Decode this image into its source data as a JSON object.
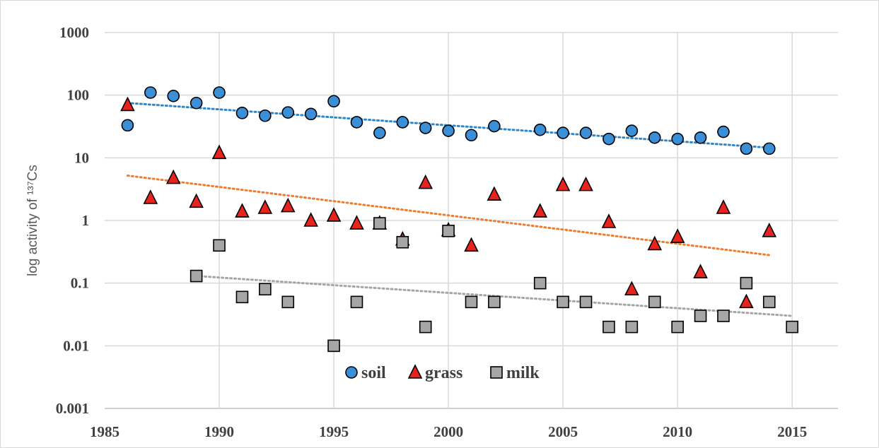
{
  "chart_data": {
    "type": "scatter",
    "y_label": "log activity of ¹³⁷Cs",
    "log_y": true,
    "grid": true,
    "xlim": [
      1985,
      2017
    ],
    "xticks": [
      1985,
      1990,
      1995,
      2000,
      2005,
      2010,
      2015
    ],
    "ylim": [
      0.001,
      1000
    ],
    "yticks": [
      0.001,
      0.01,
      0.1,
      1,
      10,
      100,
      1000
    ],
    "legend": "bottom",
    "series": [
      {
        "name": "soil",
        "marker": "circle",
        "color": "#3b8fd6",
        "trend_color": "#2f86c8",
        "x": [
          1986,
          1987,
          1988,
          1989,
          1990,
          1991,
          1992,
          1993,
          1994,
          1995,
          1996,
          1997,
          1998,
          1999,
          2000,
          2001,
          2002,
          2004,
          2005,
          2006,
          2007,
          2008,
          2009,
          2010,
          2011,
          2012,
          2013,
          2014
        ],
        "values": [
          33,
          110,
          97,
          75,
          110,
          52,
          47,
          53,
          50,
          80,
          37,
          25,
          37,
          30,
          27,
          23,
          32,
          28,
          25,
          25,
          20,
          27,
          21,
          20,
          21,
          26,
          14,
          14
        ],
        "trend": {
          "x": [
            1986,
            2014
          ],
          "values": [
            75,
            14.5
          ]
        }
      },
      {
        "name": "grass",
        "marker": "triangle",
        "color": "#e8231e",
        "trend_color": "#ed7d31",
        "x": [
          1986,
          1987,
          1988,
          1989,
          1990,
          1991,
          1992,
          1993,
          1994,
          1995,
          1996,
          1997,
          1998,
          1999,
          2000,
          2001,
          2002,
          2004,
          2005,
          2006,
          2007,
          2008,
          2009,
          2010,
          2011,
          2012,
          2013,
          2014
        ],
        "values": [
          70,
          2.3,
          4.8,
          2,
          12,
          1.4,
          1.6,
          1.7,
          1,
          1.2,
          0.9,
          0.9,
          0.5,
          4,
          0.7,
          0.4,
          2.6,
          1.4,
          3.7,
          3.7,
          0.95,
          0.08,
          0.42,
          0.55,
          0.15,
          1.6,
          0.05,
          0.68
        ],
        "trend": {
          "x": [
            1986,
            2014
          ],
          "values": [
            5.2,
            0.28
          ]
        }
      },
      {
        "name": "milk",
        "marker": "square",
        "color": "#a6a6a6",
        "trend_color": "#a5a5a5",
        "x": [
          1989,
          1990,
          1991,
          1992,
          1993,
          1995,
          1996,
          1997,
          1998,
          1999,
          2000,
          2001,
          2002,
          2004,
          2005,
          2006,
          2007,
          2008,
          2009,
          2010,
          2011,
          2012,
          2013,
          2014,
          2015
        ],
        "values": [
          0.13,
          0.4,
          0.06,
          0.08,
          0.05,
          0.01,
          0.05,
          0.9,
          0.45,
          0.02,
          0.68,
          0.05,
          0.05,
          0.1,
          0.05,
          0.05,
          0.02,
          0.02,
          0.05,
          0.02,
          0.03,
          0.03,
          0.1,
          0.05,
          0.02
        ],
        "trend": {
          "x": [
            1989,
            2015
          ],
          "values": [
            0.13,
            0.03
          ]
        }
      }
    ]
  }
}
